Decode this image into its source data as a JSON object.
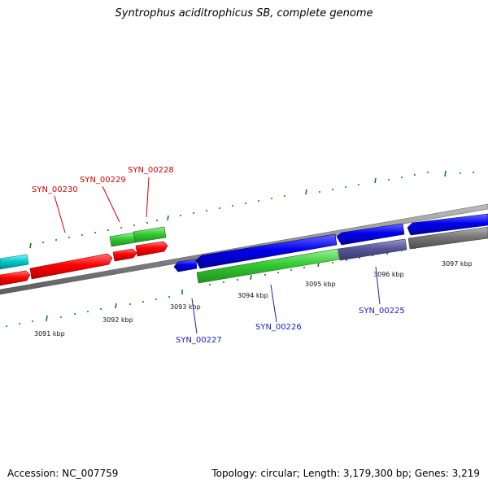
{
  "title": "Syntrophus aciditrophicus SB, complete genome",
  "footer": {
    "accession": "Accession: NC_007759",
    "summary": "Topology: circular; Length: 3,179,300 bp; Genes: 3,219"
  },
  "ticks": [
    "3091 kbp",
    "3092 kbp",
    "3093 kbp",
    "3094 kbp",
    "3095 kbp",
    "3096 kbp",
    "3097 kbp"
  ],
  "gene_labels": {
    "syn_00230": "SYN_00230",
    "syn_00229": "SYN_00229",
    "syn_00228": "SYN_00228",
    "syn_00227": "SYN_00227",
    "syn_00226": "SYN_00226",
    "syn_00225": "SYN_00225"
  },
  "colors": {
    "forward_red": "#ff0000",
    "forward_green": "#33cc33",
    "reverse_blue": "#0000ee",
    "cyan": "#00cccc",
    "slate": "#555599",
    "gray": "#777777",
    "backbone": "#888888",
    "tick": "#007a00",
    "label_red": "#d40000",
    "label_blue": "#1b1bc4"
  }
}
